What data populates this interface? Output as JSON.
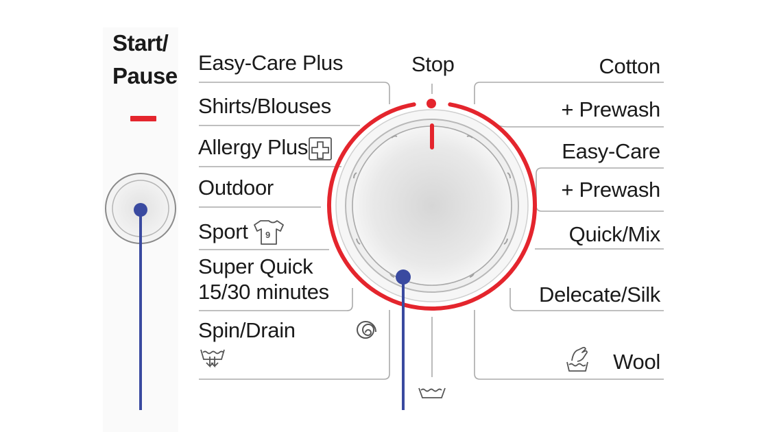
{
  "start_pause": {
    "line1": "Start/",
    "line2": "Pause",
    "led_color": "#e4252d"
  },
  "dial": {
    "stop_label": "Stop",
    "ring_color": "#e4252d",
    "pointer_color": "#3a4aa0"
  },
  "left_programs": [
    {
      "label": "Easy-Care Plus"
    },
    {
      "label": "Shirts/Blouses"
    },
    {
      "label": "Allergy Plus",
      "icon": "medical-cross-icon"
    },
    {
      "label": "Outdoor"
    },
    {
      "label": "Sport",
      "icon": "jersey-icon"
    },
    {
      "label": "Super Quick",
      "label2": "15/30 minutes"
    },
    {
      "label": "Spin/Drain",
      "icons": [
        "spin-icon",
        "drain-icon"
      ]
    }
  ],
  "right_programs": [
    {
      "label": "Cotton"
    },
    {
      "label": "+ Prewash"
    },
    {
      "label": "Easy-Care"
    },
    {
      "label": "+ Prewash"
    },
    {
      "label": "Quick/Mix"
    },
    {
      "label": "Delecate/Silk"
    },
    {
      "label": "Wool",
      "icon": "handwash-icon"
    }
  ],
  "bottom_icon": "wash-tub-icon"
}
